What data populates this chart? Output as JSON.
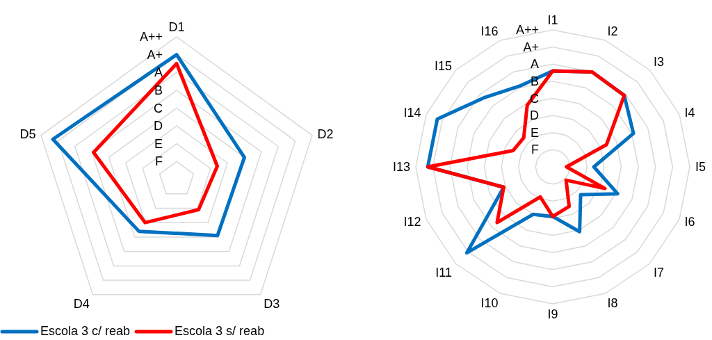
{
  "chart_data": [
    {
      "type": "radar",
      "categories": [
        "D1",
        "D2",
        "D3",
        "D4",
        "D5"
      ],
      "ylim": [
        0,
        8
      ],
      "yticks": [
        {
          "value": 1,
          "label": "F"
        },
        {
          "value": 2,
          "label": "E"
        },
        {
          "value": 3,
          "label": "D"
        },
        {
          "value": 4,
          "label": "C"
        },
        {
          "value": 5,
          "label": "B"
        },
        {
          "value": 6,
          "label": "A"
        },
        {
          "value": 7,
          "label": "A+"
        },
        {
          "value": 8,
          "label": "A++"
        }
      ],
      "grid": true,
      "legend": "bottom",
      "series": [
        {
          "name": "Escola 3 c/ reab",
          "color": "#0070c0",
          "values": [
            7.0,
            4.0,
            3.9,
            3.6,
            7.3
          ]
        },
        {
          "name": "Escola 3 s/ reab",
          "color": "#ff0000",
          "values": [
            6.5,
            2.4,
            2.1,
            3.0,
            4.9
          ]
        }
      ]
    },
    {
      "type": "radar",
      "categories": [
        "I1",
        "I2",
        "I3",
        "I4",
        "I5",
        "I6",
        "I7",
        "I8",
        "I9",
        "I10",
        "I11",
        "I12",
        "I13",
        "I14",
        "I15",
        "I16"
      ],
      "ylim": [
        0,
        8
      ],
      "yticks": [
        {
          "value": 1,
          "label": "F"
        },
        {
          "value": 2,
          "label": "E"
        },
        {
          "value": 3,
          "label": "D"
        },
        {
          "value": 4,
          "label": "C"
        },
        {
          "value": 5,
          "label": "B"
        },
        {
          "value": 6,
          "label": "A"
        },
        {
          "value": 7,
          "label": "A+"
        },
        {
          "value": 8,
          "label": "A++"
        }
      ],
      "grid": true,
      "series": [
        {
          "color": "#0070c0",
          "values": [
            5.6,
            6.0,
            5.9,
            5.1,
            2.4,
            4.1,
            2.3,
            4.1,
            2.9,
            3.0,
            7.1,
            3.1,
            7.3,
            7.3,
            5.7,
            5.1
          ]
        },
        {
          "color": "#ff0000",
          "values": [
            5.6,
            6.0,
            5.9,
            3.4,
            0.8,
            3.3,
            1.1,
            2.5,
            2.9,
            1.9,
            4.6,
            3.1,
            7.3,
            2.5,
            2.4,
            3.9
          ]
        }
      ]
    }
  ]
}
